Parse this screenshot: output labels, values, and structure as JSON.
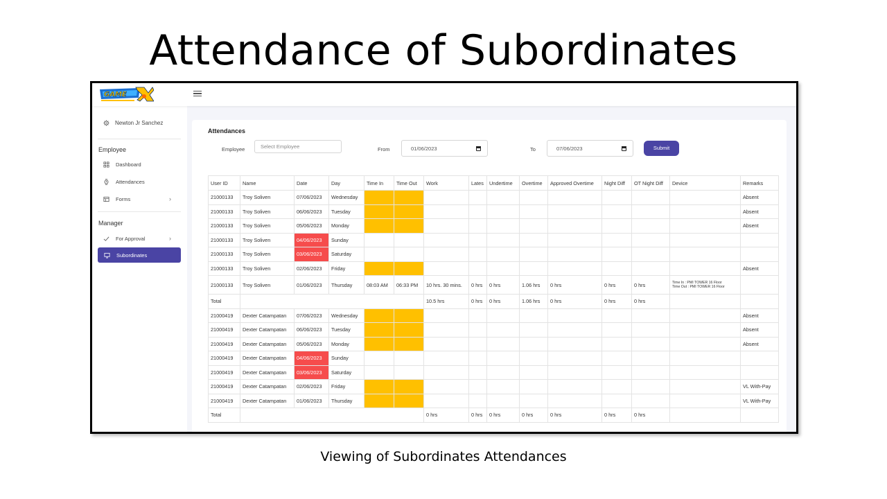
{
  "slide": {
    "title": "Attendance of Subordinates",
    "caption": "Viewing of Subordinates Attendances"
  },
  "sidebar": {
    "user_name": "Newton Jr Sanchez",
    "employee_header": "Employee",
    "employee_items": [
      {
        "label": "Dashboard",
        "icon": "grid-icon"
      },
      {
        "label": "Attendances",
        "icon": "watch-icon"
      },
      {
        "label": "Forms",
        "icon": "form-icon"
      }
    ],
    "manager_header": "Manager",
    "manager_items": [
      {
        "label": "For Approval",
        "icon": "check-icon"
      },
      {
        "label": "Subordinates",
        "icon": "monitor-icon"
      }
    ]
  },
  "attendances": {
    "title": "Attendances",
    "employee_label": "Employee",
    "employee_placeholder": "Select Employee",
    "from_label": "From",
    "from_value": "01/06/2023",
    "to_label": "To",
    "to_value": "07/06/2023",
    "submit_label": "Submit"
  },
  "colors": {
    "accent": "#4a44a4",
    "missing_time": "#ffc000",
    "weekend": "#f64c4c"
  },
  "table": {
    "headers": [
      "User ID",
      "Name",
      "Date",
      "Day",
      "Time In",
      "Time Out",
      "Work",
      "Lates",
      "Undertime",
      "Overtime",
      "Approved Overtime",
      "Night Diff",
      "OT Night Diff",
      "Device",
      "Remarks"
    ],
    "rows": [
      [
        "21000133",
        "Troy Soliven",
        "07/06/2023",
        "Wednesday",
        "",
        "",
        "",
        "",
        "",
        "",
        "",
        "",
        "",
        "",
        "Absent"
      ],
      [
        "21000133",
        "Troy Soliven",
        "06/06/2023",
        "Tuesday",
        "",
        "",
        "",
        "",
        "",
        "",
        "",
        "",
        "",
        "",
        "Absent"
      ],
      [
        "21000133",
        "Troy Soliven",
        "05/06/2023",
        "Monday",
        "",
        "",
        "",
        "",
        "",
        "",
        "",
        "",
        "",
        "",
        "Absent"
      ],
      [
        "21000133",
        "Troy Soliven",
        "04/06/2023",
        "Sunday",
        "",
        "",
        "",
        "",
        "",
        "",
        "",
        "",
        "",
        "",
        ""
      ],
      [
        "21000133",
        "Troy Soliven",
        "03/06/2023",
        "Saturday",
        "",
        "",
        "",
        "",
        "",
        "",
        "",
        "",
        "",
        "",
        ""
      ],
      [
        "21000133",
        "Troy Soliven",
        "02/06/2023",
        "Friday",
        "",
        "",
        "",
        "",
        "",
        "",
        "",
        "",
        "",
        "",
        "Absent"
      ],
      [
        "21000133",
        "Troy Soliven",
        "01/06/2023",
        "Thursday",
        "08:03 AM",
        "06:33 PM",
        "10 hrs. 30 mins.",
        "0 hrs",
        "0 hrs",
        "1.06 hrs",
        "0 hrs",
        "0 hrs",
        "0 hrs",
        "Time In : PMI TOWER 16 Floor\nTime Out : PMI TOWER 16 Floor",
        ""
      ],
      [
        "Total",
        "",
        "",
        "",
        "",
        "",
        "10.5 hrs",
        "0 hrs",
        "0 hrs",
        "1.06 hrs",
        "0 hrs",
        "0 hrs",
        "0 hrs",
        "",
        ""
      ],
      [
        "21000419",
        "Dexter Catampatan",
        "07/06/2023",
        "Wednesday",
        "",
        "",
        "",
        "",
        "",
        "",
        "",
        "",
        "",
        "",
        "Absent"
      ],
      [
        "21000419",
        "Dexter Catampatan",
        "06/06/2023",
        "Tuesday",
        "",
        "",
        "",
        "",
        "",
        "",
        "",
        "",
        "",
        "",
        "Absent"
      ],
      [
        "21000419",
        "Dexter Catampatan",
        "05/06/2023",
        "Monday",
        "",
        "",
        "",
        "",
        "",
        "",
        "",
        "",
        "",
        "",
        "Absent"
      ],
      [
        "21000419",
        "Dexter Catampatan",
        "04/06/2023",
        "Sunday",
        "",
        "",
        "",
        "",
        "",
        "",
        "",
        "",
        "",
        "",
        ""
      ],
      [
        "21000419",
        "Dexter Catampatan",
        "03/06/2023",
        "Saturday",
        "",
        "",
        "",
        "",
        "",
        "",
        "",
        "",
        "",
        "",
        ""
      ],
      [
        "21000419",
        "Dexter Catampatan",
        "02/06/2023",
        "Friday",
        "",
        "",
        "",
        "",
        "",
        "",
        "",
        "",
        "",
        "",
        "VL With-Pay"
      ],
      [
        "21000419",
        "Dexter Catampatan",
        "01/06/2023",
        "Thursday",
        "",
        "",
        "",
        "",
        "",
        "",
        "",
        "",
        "",
        "",
        "VL With-Pay"
      ],
      [
        "Total",
        "",
        "",
        "",
        "",
        "",
        "0 hrs",
        "0 hrs",
        "0 hrs",
        "0 hrs",
        "0 hrs",
        "0 hrs",
        "0 hrs",
        "",
        ""
      ]
    ]
  }
}
